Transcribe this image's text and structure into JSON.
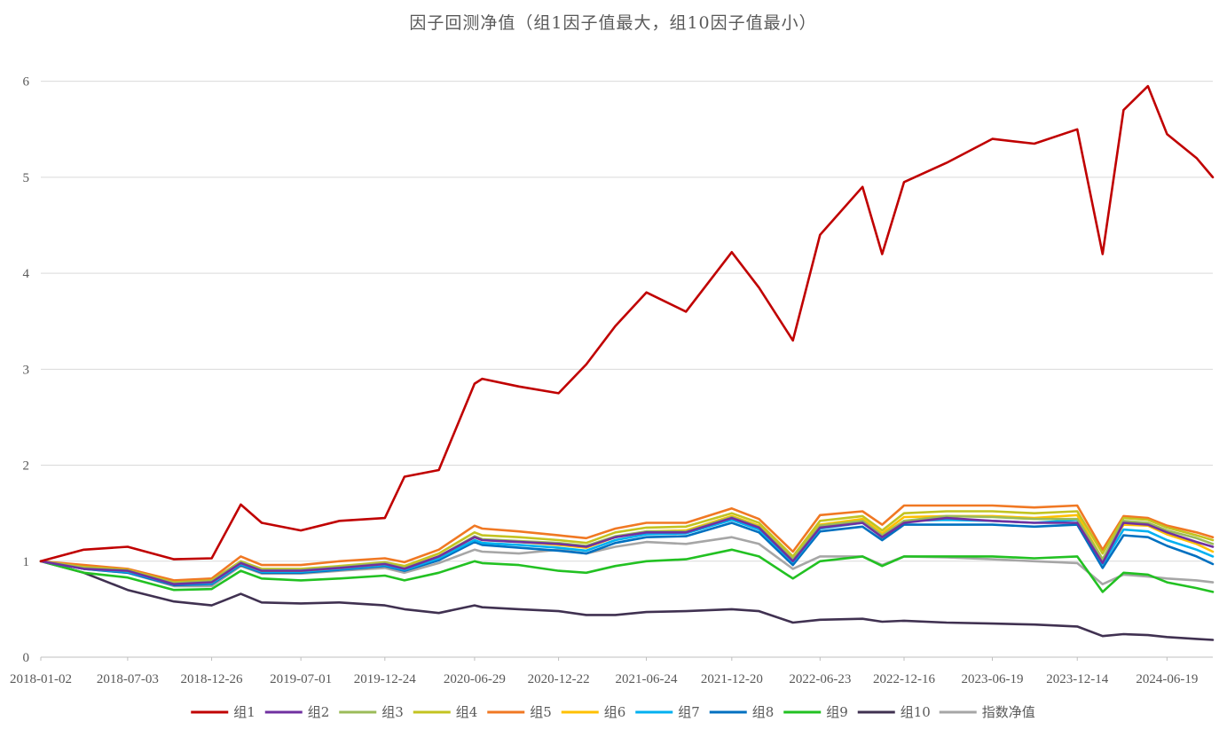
{
  "chart_data": {
    "type": "line",
    "title": "因子回测净值（组1因子值最大，组10因子值最小）",
    "xlabel": "",
    "ylabel": "",
    "ylim": [
      0,
      6.2
    ],
    "yticks": [
      0,
      1,
      2,
      3,
      4,
      5,
      6
    ],
    "grid": true,
    "legend_position": "bottom",
    "x_tick_labels": [
      "2018-01-02",
      "2018-07-03",
      "2018-12-26",
      "2019-07-01",
      "2019-12-24",
      "2020-06-29",
      "2020-12-22",
      "2021-06-24",
      "2021-12-20",
      "2022-06-23",
      "2022-12-16",
      "2023-06-19",
      "2023-12-14",
      "2024-06-19"
    ],
    "x": [
      "2018-01-02",
      "2018-04-02",
      "2018-07-03",
      "2018-10-08",
      "2018-12-26",
      "2019-02-25",
      "2019-04-10",
      "2019-07-01",
      "2019-09-20",
      "2019-12-24",
      "2020-02-03",
      "2020-04-15",
      "2020-06-29",
      "2020-07-15",
      "2020-09-30",
      "2020-12-22",
      "2021-02-18",
      "2021-04-20",
      "2021-06-24",
      "2021-09-15",
      "2021-12-20",
      "2022-02-15",
      "2022-04-27",
      "2022-06-23",
      "2022-09-20",
      "2022-10-31",
      "2022-12-16",
      "2023-03-15",
      "2023-06-19",
      "2023-09-15",
      "2023-12-14",
      "2024-02-05",
      "2024-03-20",
      "2024-05-10",
      "2024-06-19",
      "2024-08-20",
      "2024-09-23"
    ],
    "series": [
      {
        "name": "组1",
        "color": "#c00000",
        "values": [
          1.0,
          1.12,
          1.15,
          1.02,
          1.03,
          1.59,
          1.4,
          1.32,
          1.42,
          1.45,
          1.88,
          1.95,
          2.85,
          2.9,
          2.82,
          2.75,
          3.05,
          3.45,
          3.8,
          3.6,
          4.22,
          3.85,
          3.3,
          4.4,
          4.9,
          4.2,
          4.95,
          5.15,
          5.4,
          5.35,
          5.5,
          4.2,
          5.7,
          5.95,
          5.45,
          5.2,
          5.0
        ]
      },
      {
        "name": "组2",
        "color": "#7030a0",
        "values": [
          1.0,
          0.92,
          0.9,
          0.76,
          0.78,
          0.98,
          0.9,
          0.9,
          0.93,
          0.97,
          0.92,
          1.05,
          1.25,
          1.22,
          1.2,
          1.18,
          1.15,
          1.25,
          1.3,
          1.3,
          1.45,
          1.35,
          1.0,
          1.35,
          1.4,
          1.25,
          1.4,
          1.45,
          1.42,
          1.4,
          1.4,
          0.98,
          1.4,
          1.38,
          1.3,
          1.2,
          1.15
        ]
      },
      {
        "name": "组3",
        "color": "#9bbb59",
        "values": [
          1.0,
          0.93,
          0.9,
          0.77,
          0.79,
          0.99,
          0.91,
          0.91,
          0.94,
          0.98,
          0.93,
          1.05,
          1.26,
          1.23,
          1.21,
          1.19,
          1.16,
          1.26,
          1.31,
          1.31,
          1.46,
          1.36,
          1.02,
          1.37,
          1.42,
          1.27,
          1.42,
          1.47,
          1.46,
          1.44,
          1.44,
          1.02,
          1.42,
          1.4,
          1.32,
          1.24,
          1.18
        ]
      },
      {
        "name": "组4",
        "color": "#c3c320",
        "values": [
          1.0,
          0.94,
          0.91,
          0.78,
          0.8,
          1.0,
          0.92,
          0.92,
          0.95,
          0.99,
          0.95,
          1.08,
          1.3,
          1.27,
          1.25,
          1.22,
          1.19,
          1.3,
          1.35,
          1.36,
          1.5,
          1.4,
          1.05,
          1.42,
          1.47,
          1.32,
          1.5,
          1.52,
          1.52,
          1.5,
          1.52,
          1.08,
          1.45,
          1.43,
          1.35,
          1.27,
          1.22
        ]
      },
      {
        "name": "组5",
        "color": "#f07823",
        "values": [
          1.0,
          0.96,
          0.92,
          0.8,
          0.82,
          1.05,
          0.96,
          0.96,
          1.0,
          1.03,
          0.99,
          1.12,
          1.37,
          1.34,
          1.31,
          1.27,
          1.24,
          1.34,
          1.4,
          1.4,
          1.55,
          1.44,
          1.1,
          1.48,
          1.52,
          1.38,
          1.58,
          1.58,
          1.58,
          1.56,
          1.58,
          1.12,
          1.47,
          1.45,
          1.37,
          1.3,
          1.25
        ]
      },
      {
        "name": "组6",
        "color": "#ffc000",
        "values": [
          1.0,
          0.93,
          0.9,
          0.77,
          0.78,
          0.98,
          0.9,
          0.9,
          0.93,
          0.97,
          0.93,
          1.05,
          1.25,
          1.22,
          1.2,
          1.17,
          1.14,
          1.25,
          1.31,
          1.32,
          1.47,
          1.37,
          1.02,
          1.38,
          1.44,
          1.29,
          1.46,
          1.47,
          1.47,
          1.45,
          1.48,
          1.02,
          1.38,
          1.37,
          1.28,
          1.18,
          1.1
        ]
      },
      {
        "name": "组7",
        "color": "#00b0f0",
        "values": [
          1.0,
          0.92,
          0.89,
          0.76,
          0.77,
          0.97,
          0.89,
          0.89,
          0.92,
          0.96,
          0.91,
          1.03,
          1.22,
          1.19,
          1.17,
          1.14,
          1.11,
          1.22,
          1.28,
          1.29,
          1.43,
          1.33,
          0.99,
          1.34,
          1.4,
          1.25,
          1.42,
          1.43,
          1.42,
          1.4,
          1.43,
          0.97,
          1.33,
          1.31,
          1.22,
          1.12,
          1.05
        ]
      },
      {
        "name": "组8",
        "color": "#0070c0",
        "values": [
          1.0,
          0.92,
          0.88,
          0.75,
          0.76,
          0.96,
          0.88,
          0.88,
          0.91,
          0.95,
          0.9,
          1.01,
          1.2,
          1.17,
          1.14,
          1.11,
          1.08,
          1.19,
          1.25,
          1.26,
          1.4,
          1.3,
          0.96,
          1.31,
          1.36,
          1.22,
          1.38,
          1.38,
          1.38,
          1.36,
          1.38,
          0.93,
          1.27,
          1.25,
          1.16,
          1.05,
          0.97
        ]
      },
      {
        "name": "组9",
        "color": "#22c122",
        "values": [
          1.0,
          0.88,
          0.83,
          0.7,
          0.71,
          0.9,
          0.82,
          0.8,
          0.82,
          0.85,
          0.8,
          0.88,
          1.0,
          0.98,
          0.96,
          0.9,
          0.88,
          0.95,
          1.0,
          1.02,
          1.12,
          1.05,
          0.82,
          1.0,
          1.05,
          0.95,
          1.05,
          1.05,
          1.05,
          1.03,
          1.05,
          0.68,
          0.88,
          0.86,
          0.78,
          0.72,
          0.68
        ]
      },
      {
        "name": "组10",
        "color": "#403151",
        "values": [
          1.0,
          0.88,
          0.7,
          0.58,
          0.54,
          0.66,
          0.57,
          0.56,
          0.57,
          0.54,
          0.5,
          0.46,
          0.54,
          0.52,
          0.5,
          0.48,
          0.44,
          0.44,
          0.47,
          0.48,
          0.5,
          0.48,
          0.36,
          0.39,
          0.4,
          0.37,
          0.38,
          0.36,
          0.35,
          0.34,
          0.32,
          0.22,
          0.24,
          0.23,
          0.21,
          0.19,
          0.18
        ]
      },
      {
        "name": "指数净值",
        "color": "#a6a6a6",
        "values": [
          1.0,
          0.92,
          0.88,
          0.74,
          0.74,
          0.95,
          0.87,
          0.87,
          0.9,
          0.93,
          0.88,
          0.98,
          1.12,
          1.1,
          1.08,
          1.12,
          1.08,
          1.15,
          1.2,
          1.18,
          1.25,
          1.18,
          0.92,
          1.05,
          1.05,
          0.96,
          1.05,
          1.04,
          1.02,
          1.0,
          0.98,
          0.76,
          0.86,
          0.84,
          0.82,
          0.8,
          0.78
        ]
      }
    ]
  }
}
